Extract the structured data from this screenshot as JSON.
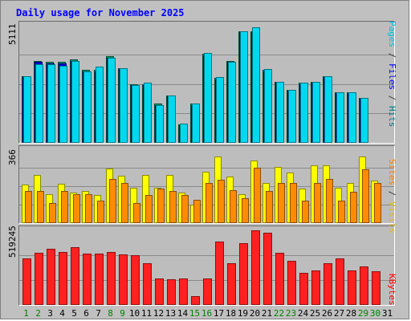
{
  "title": "Daily usage for November 2025",
  "max_labels": {
    "hits": "5111",
    "visits": "366",
    "kbytes": "519245"
  },
  "side_labels": {
    "top": [
      {
        "text": "Pages",
        "color": "#00c0e0"
      },
      {
        "text": " / ",
        "color": "#404040"
      },
      {
        "text": "Files",
        "color": "#0000ff"
      },
      {
        "text": " / ",
        "color": "#404040"
      },
      {
        "text": "Hits",
        "color": "#008080"
      }
    ],
    "middle": [
      {
        "text": "Sites",
        "color": "#ff8000"
      },
      {
        "text": " / ",
        "color": "#404040"
      },
      {
        "text": "Visits",
        "color": "#e0c000"
      }
    ],
    "bottom": [
      {
        "text": "KBytes",
        "color": "#ff0000"
      }
    ]
  },
  "colors": {
    "hits": "#009070",
    "files": "#0000d0",
    "pages": "#00d8f0",
    "visits": "#ffff00",
    "sites": "#ff8c00",
    "kbytes": "#ff2020",
    "weekend_day": "#008000",
    "weekday_day": "#000000"
  },
  "weekend_days": [
    1,
    2,
    8,
    9,
    15,
    16,
    22,
    23,
    29,
    30
  ],
  "chart_data": [
    {
      "type": "bar",
      "title": "",
      "ylim": [
        0,
        5111
      ],
      "x": [
        1,
        2,
        3,
        4,
        5,
        6,
        7,
        8,
        9,
        10,
        11,
        12,
        13,
        14,
        15,
        16,
        17,
        18,
        19,
        20,
        21,
        22,
        23,
        24,
        25,
        26,
        27,
        28,
        29,
        30,
        31
      ],
      "series": [
        {
          "name": "Hits",
          "values": [
            2900,
            3550,
            3500,
            3500,
            3600,
            3150,
            3150,
            3750,
            3250,
            2550,
            2550,
            1700,
            2050,
            800,
            1700,
            3850,
            2800,
            3550,
            4850,
            4850,
            3150,
            2650,
            2300,
            2600,
            2650,
            2900,
            2200,
            2200,
            1950,
            0,
            0
          ]
        },
        {
          "name": "Files",
          "values": [
            2900,
            3500,
            3450,
            3450,
            3550,
            3100,
            3100,
            3700,
            3200,
            2500,
            2500,
            1650,
            2000,
            750,
            1650,
            3800,
            2750,
            3500,
            4800,
            4800,
            3100,
            2600,
            2250,
            2550,
            2600,
            2850,
            2150,
            2150,
            1900,
            0,
            0
          ]
        },
        {
          "name": "Pages",
          "values": [
            2900,
            3400,
            3400,
            3350,
            3550,
            3100,
            3300,
            3700,
            3250,
            2500,
            2600,
            1650,
            2050,
            850,
            1700,
            3900,
            2850,
            3500,
            4850,
            5000,
            3200,
            2650,
            2300,
            2600,
            2650,
            2900,
            2200,
            2200,
            1950,
            0,
            0
          ]
        }
      ]
    },
    {
      "type": "bar",
      "title": "",
      "ylim": [
        0,
        366
      ],
      "x": [
        1,
        2,
        3,
        4,
        5,
        6,
        7,
        8,
        9,
        10,
        11,
        12,
        13,
        14,
        15,
        16,
        17,
        18,
        19,
        20,
        21,
        22,
        23,
        24,
        25,
        26,
        27,
        28,
        29,
        30,
        31
      ],
      "series": [
        {
          "name": "Visits",
          "values": [
            190,
            240,
            145,
            195,
            150,
            160,
            140,
            270,
            235,
            175,
            240,
            175,
            240,
            150,
            90,
            255,
            330,
            230,
            145,
            310,
            200,
            280,
            250,
            170,
            285,
            285,
            175,
            200,
            330,
            210,
            0
          ]
        },
        {
          "name": "Sites",
          "values": [
            160,
            160,
            100,
            160,
            145,
            145,
            110,
            220,
            200,
            100,
            140,
            170,
            160,
            140,
            115,
            200,
            215,
            165,
            125,
            275,
            160,
            200,
            200,
            110,
            200,
            220,
            110,
            155,
            265,
            200,
            0
          ]
        }
      ]
    },
    {
      "type": "bar",
      "title": "",
      "ylim": [
        0,
        519245
      ],
      "x": [
        1,
        2,
        3,
        4,
        5,
        6,
        7,
        8,
        9,
        10,
        11,
        12,
        13,
        14,
        15,
        16,
        17,
        18,
        19,
        20,
        21,
        22,
        23,
        24,
        25,
        26,
        27,
        28,
        29,
        30,
        31
      ],
      "series": [
        {
          "name": "KBytes",
          "values": [
            320000,
            360000,
            385000,
            365000,
            400000,
            355000,
            355000,
            365000,
            350000,
            345000,
            285000,
            185000,
            178000,
            180000,
            60000,
            185000,
            435000,
            290000,
            425000,
            515000,
            495000,
            360000,
            305000,
            220000,
            235000,
            285000,
            320000,
            240000,
            265000,
            230000,
            0
          ]
        }
      ]
    }
  ]
}
